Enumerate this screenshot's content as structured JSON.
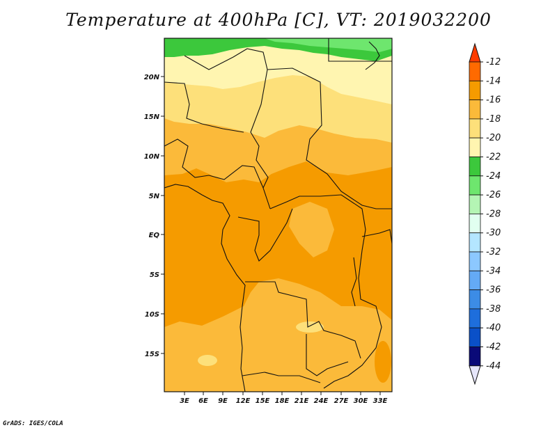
{
  "title": "Temperature at 400hPa [C], VT: 2019032200",
  "credit": "GrADS: IGES/COLA",
  "map": {
    "lat_labels": [
      "20N",
      "15N",
      "10N",
      "5N",
      "EQ",
      "5S",
      "10S",
      "15S"
    ],
    "lon_labels": [
      "3E",
      "6E",
      "9E",
      "12E",
      "15E",
      "18E",
      "21E",
      "24E",
      "27E",
      "30E",
      "33E"
    ]
  },
  "colorbar": {
    "labels": [
      "-12",
      "-14",
      "-16",
      "-18",
      "-20",
      "-22",
      "-24",
      "-26",
      "-28",
      "-30",
      "-32",
      "-34",
      "-36",
      "-38",
      "-40",
      "-42",
      "-44"
    ],
    "colors": {
      "above_-12": "#ff3c00",
      "-14_-12": "#ff6a00",
      "-16_-14": "#f59b00",
      "-18_-16": "#fbba3a",
      "-20_-18": "#fde07a",
      "-22_-20": "#fff5b0",
      "-24_-22": "#3cc83c",
      "-26_-24": "#6ee66e",
      "-28_-26": "#b4f5b4",
      "-30_-28": "#e1fff0",
      "-32_-30": "#b4e6ff",
      "-34_-32": "#8cc8ff",
      "-36_-34": "#64aaf5",
      "-38_-36": "#3c8ce6",
      "-40_-38": "#1e6edc",
      "-42_-40": "#0a50c8",
      "-44_-42": "#0a0a78",
      "below_-44": "#e6e6fa"
    }
  }
}
